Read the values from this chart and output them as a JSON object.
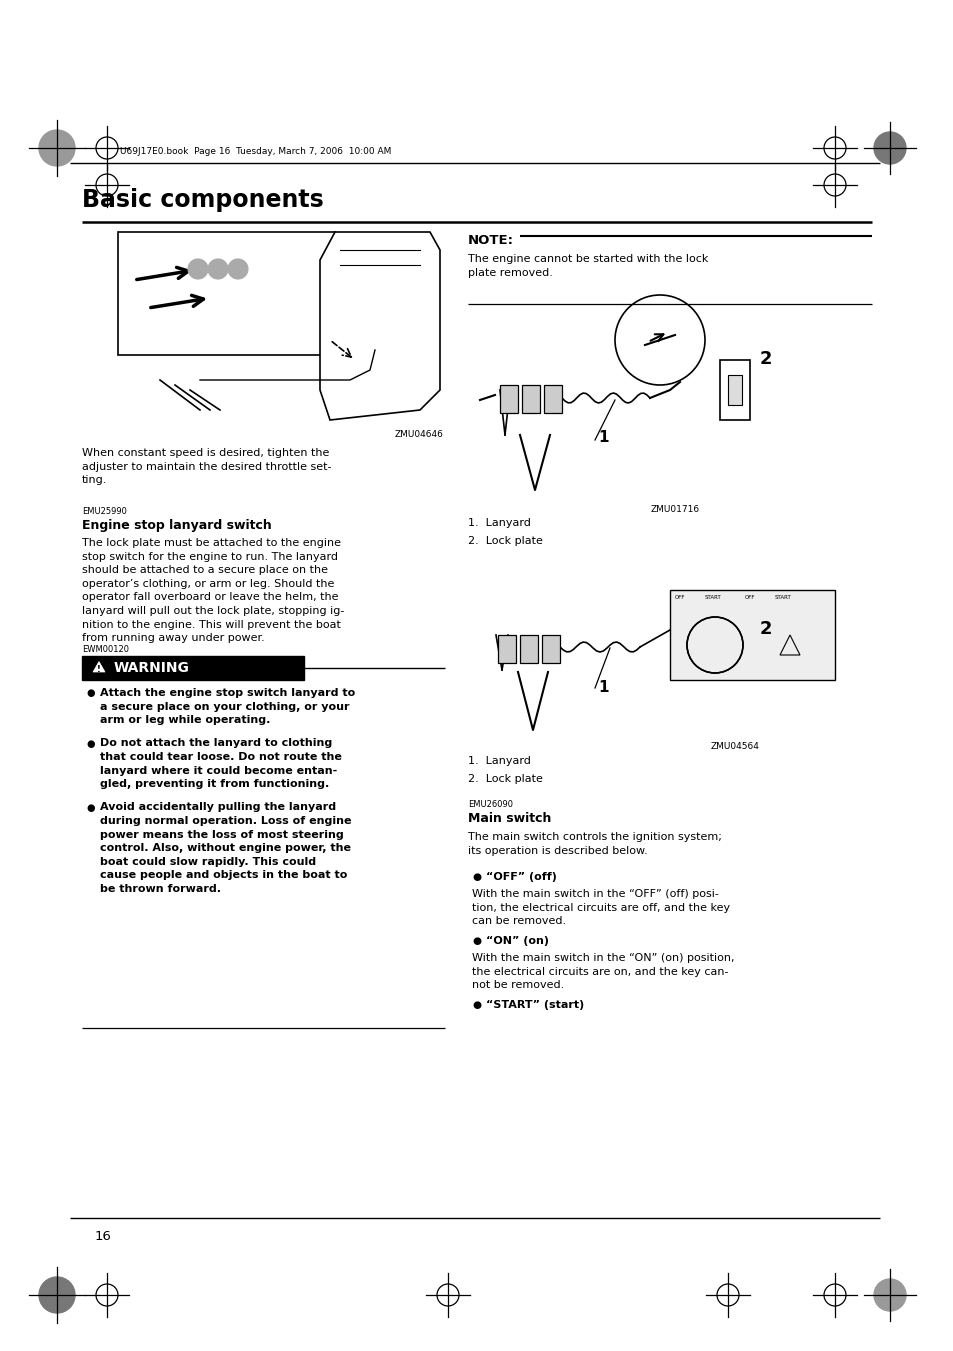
{
  "page_bg": "#ffffff",
  "page_width": 9.54,
  "page_height": 13.51,
  "dpi": 100,
  "header_text": "U69J17E0.book  Page 16  Tuesday, March 7, 2006  10:00 AM",
  "chapter_title": "Basic components",
  "page_number": "16",
  "note_label": "NOTE:",
  "note_text": "The engine cannot be started with the lock\nplate removed.",
  "fig1_caption": "ZMU04646",
  "fig1_ref": "ZMU01716",
  "fig1_label1": "1.  Lanyard",
  "fig1_label2": "2.  Lock plate",
  "fig2_ref": "ZMU04564",
  "fig2_label1": "1.  Lanyard",
  "fig2_label2": "2.  Lock plate",
  "para_intro": "When constant speed is desired, tighten the\nadjuster to maintain the desired throttle set-\nting.",
  "section_code1": "EMU25990",
  "section_title1": "Engine stop lanyard switch",
  "section_body1": "The lock plate must be attached to the engine\nstop switch for the engine to run. The lanyard\nshould be attached to a secure place on the\noperator’s clothing, or arm or leg. Should the\noperator fall overboard or leave the helm, the\nlanyard will pull out the lock plate, stopping ig-\nnition to the engine. This will prevent the boat\nfrom running away under power.",
  "warning_code": "EWM00120",
  "warning_label": "WARNING",
  "warning_bullets": [
    "Attach the engine stop switch lanyard to\na secure place on your clothing, or your\narm or leg while operating.",
    "Do not attach the lanyard to clothing\nthat could tear loose. Do not route the\nlanyard where it could become entan-\ngled, preventing it from functioning.",
    "Avoid accidentally pulling the lanyard\nduring normal operation. Loss of engine\npower means the loss of most steering\ncontrol. Also, without engine power, the\nboat could slow rapidly. This could\ncause people and objects in the boat to\nbe thrown forward."
  ],
  "section_code2": "EMU26090",
  "section_title2": "Main switch",
  "section_body2": "The main switch controls the ignition system;\nits operation is described below.",
  "main_switch_bullets": [
    {
      "label_bold": "“OFF” (off)",
      "body": "With the main switch in the “OFF” (off) posi-\ntion, the electrical circuits are off, and the key\ncan be removed."
    },
    {
      "label_bold": "“ON” (on)",
      "body": "With the main switch in the “ON” (on) position,\nthe electrical circuits are on, and the key can-\nnot be removed."
    },
    {
      "label_bold": "“START” (start)",
      "body": ""
    }
  ],
  "reg_mark_color": "#888888",
  "line_color": "#000000"
}
